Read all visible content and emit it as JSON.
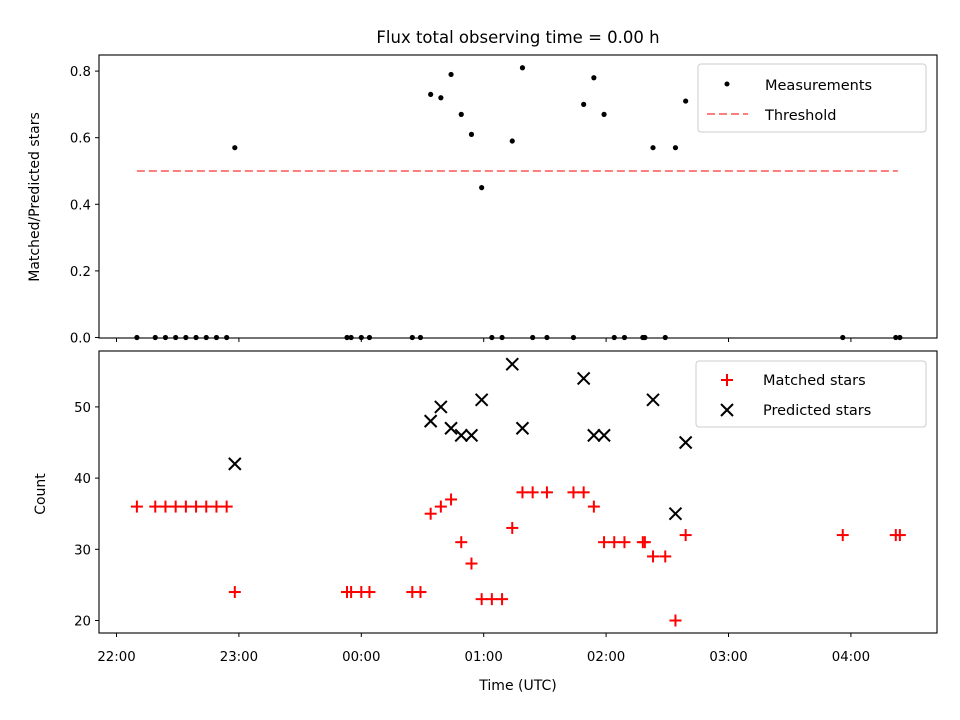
{
  "chart_data": [
    {
      "type": "scatter",
      "title": "Flux total observing time = 0.00 h",
      "ylabel": "Matched/Predicted stars",
      "xlim": [
        "21:52",
        "04:43"
      ],
      "ylim": [
        0,
        0.85
      ],
      "yticks": [
        "0.0",
        "0.2",
        "0.4",
        "0.6",
        "0.8"
      ],
      "threshold": {
        "name": "Threshold",
        "y": 0.5,
        "x_start": "22:10",
        "x_end": "04:23",
        "color": "#ff7f7f"
      },
      "series": [
        {
          "name": "Measurements",
          "color": "#000000",
          "points": [
            [
              "22:10",
              0.0
            ],
            [
              "22:19",
              0.0
            ],
            [
              "22:24",
              0.0
            ],
            [
              "22:29",
              0.0
            ],
            [
              "22:34",
              0.0
            ],
            [
              "22:39",
              0.0
            ],
            [
              "22:44",
              0.0
            ],
            [
              "22:49",
              0.0
            ],
            [
              "22:54",
              0.0
            ],
            [
              "22:58",
              0.57
            ],
            [
              "23:53",
              0.0
            ],
            [
              "23:55",
              0.0
            ],
            [
              "00:00",
              0.0
            ],
            [
              "00:04",
              0.0
            ],
            [
              "00:25",
              0.0
            ],
            [
              "00:29",
              0.0
            ],
            [
              "00:34",
              0.73
            ],
            [
              "00:39",
              0.72
            ],
            [
              "00:44",
              0.79
            ],
            [
              "00:49",
              0.67
            ],
            [
              "00:54",
              0.61
            ],
            [
              "00:59",
              0.45
            ],
            [
              "01:04",
              0.0
            ],
            [
              "01:09",
              0.0
            ],
            [
              "01:14",
              0.59
            ],
            [
              "01:19",
              0.81
            ],
            [
              "01:24",
              0.0
            ],
            [
              "01:31",
              0.0
            ],
            [
              "01:44",
              0.0
            ],
            [
              "01:49",
              0.7
            ],
            [
              "01:54",
              0.78
            ],
            [
              "01:59",
              0.67
            ],
            [
              "02:04",
              0.0
            ],
            [
              "02:09",
              0.0
            ],
            [
              "02:18",
              0.0
            ],
            [
              "02:19",
              0.0
            ],
            [
              "02:23",
              0.57
            ],
            [
              "02:29",
              0.0
            ],
            [
              "02:34",
              0.57
            ],
            [
              "02:39",
              0.71
            ],
            [
              "03:56",
              0.0
            ],
            [
              "04:22",
              0.0
            ],
            [
              "04:24",
              0.0
            ]
          ]
        }
      ],
      "legend": "top-right",
      "grid": false
    },
    {
      "type": "scatter",
      "xlabel": "Time (UTC)",
      "ylabel": "Count",
      "xlim": [
        "21:52",
        "04:43"
      ],
      "ylim": [
        18,
        58
      ],
      "xticks": [
        "22:00",
        "23:00",
        "00:00",
        "01:00",
        "02:00",
        "03:00",
        "04:00"
      ],
      "yticks": [
        "20",
        "30",
        "40",
        "50"
      ],
      "series": [
        {
          "name": "Matched stars",
          "marker": "plus",
          "color": "#ff0000",
          "points": [
            [
              "22:10",
              36
            ],
            [
              "22:19",
              36
            ],
            [
              "22:24",
              36
            ],
            [
              "22:29",
              36
            ],
            [
              "22:34",
              36
            ],
            [
              "22:39",
              36
            ],
            [
              "22:44",
              36
            ],
            [
              "22:49",
              36
            ],
            [
              "22:54",
              36
            ],
            [
              "22:58",
              24
            ],
            [
              "23:53",
              24
            ],
            [
              "23:55",
              24
            ],
            [
              "00:00",
              24
            ],
            [
              "00:04",
              24
            ],
            [
              "00:25",
              24
            ],
            [
              "00:29",
              24
            ],
            [
              "00:34",
              35
            ],
            [
              "00:39",
              36
            ],
            [
              "00:44",
              37
            ],
            [
              "00:49",
              31
            ],
            [
              "00:54",
              28
            ],
            [
              "00:59",
              23
            ],
            [
              "01:04",
              23
            ],
            [
              "01:09",
              23
            ],
            [
              "01:14",
              33
            ],
            [
              "01:19",
              38
            ],
            [
              "01:24",
              38
            ],
            [
              "01:31",
              38
            ],
            [
              "01:44",
              38
            ],
            [
              "01:49",
              38
            ],
            [
              "01:54",
              36
            ],
            [
              "01:59",
              31
            ],
            [
              "02:04",
              31
            ],
            [
              "02:09",
              31
            ],
            [
              "02:18",
              31
            ],
            [
              "02:19",
              31
            ],
            [
              "02:23",
              29
            ],
            [
              "02:29",
              29
            ],
            [
              "02:34",
              20
            ],
            [
              "02:39",
              32
            ],
            [
              "03:56",
              32
            ],
            [
              "04:22",
              32
            ],
            [
              "04:24",
              32
            ]
          ]
        },
        {
          "name": "Predicted stars",
          "marker": "x",
          "color": "#000000",
          "points": [
            [
              "22:58",
              42
            ],
            [
              "00:34",
              48
            ],
            [
              "00:39",
              50
            ],
            [
              "00:44",
              47
            ],
            [
              "00:49",
              46
            ],
            [
              "00:54",
              46
            ],
            [
              "00:59",
              51
            ],
            [
              "01:14",
              56
            ],
            [
              "01:19",
              47
            ],
            [
              "01:49",
              54
            ],
            [
              "01:54",
              46
            ],
            [
              "01:59",
              46
            ],
            [
              "02:23",
              51
            ],
            [
              "02:34",
              35
            ],
            [
              "02:39",
              45
            ]
          ]
        }
      ],
      "legend": "top-right",
      "grid": false
    }
  ]
}
